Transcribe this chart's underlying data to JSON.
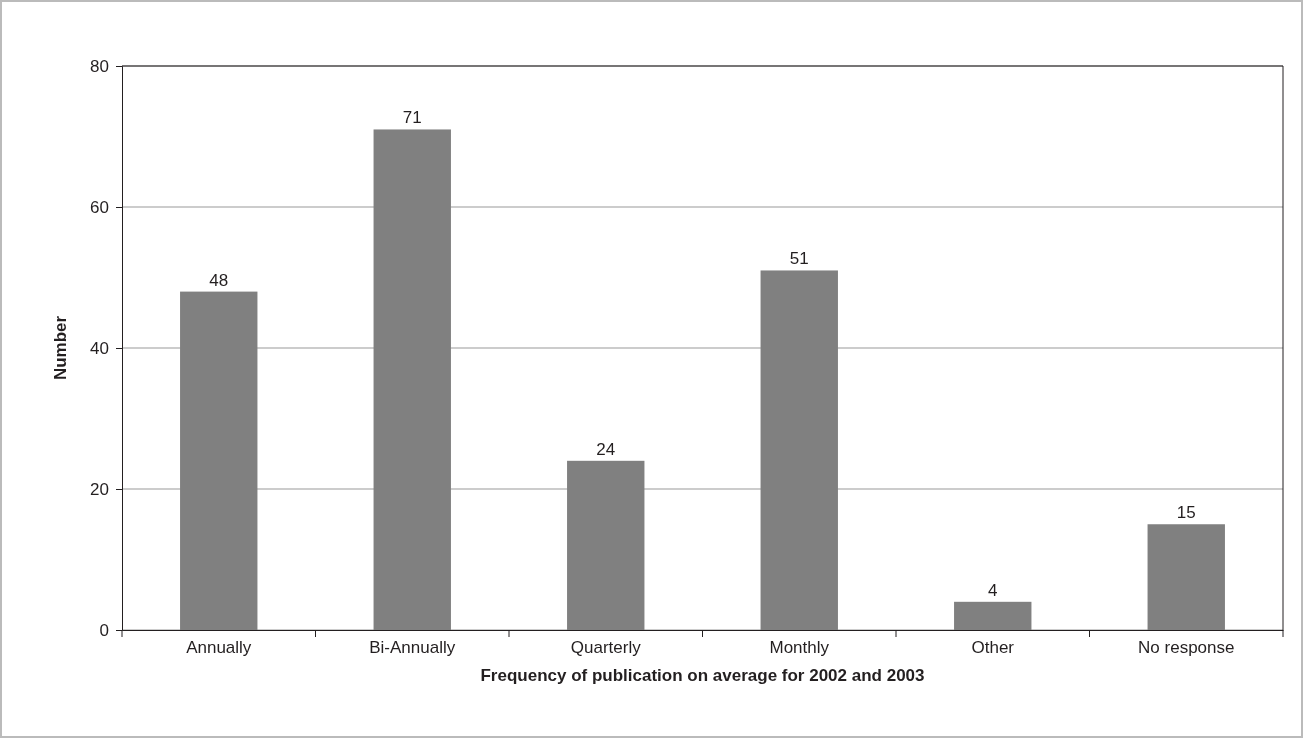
{
  "chart_data": {
    "type": "bar",
    "xlabel": "Frequency of publication on average for 2002 and 2003",
    "ylabel": "Number",
    "categories": [
      "Annually",
      "Bi-Annually",
      "Quarterly",
      "Monthly",
      "Other",
      "No response"
    ],
    "values": [
      48,
      71,
      24,
      51,
      4,
      15
    ],
    "color": "#808080",
    "ylim": [
      0,
      80
    ],
    "yticks": [
      0,
      20,
      40,
      60,
      80
    ],
    "grid": "y",
    "data_labels": true
  }
}
